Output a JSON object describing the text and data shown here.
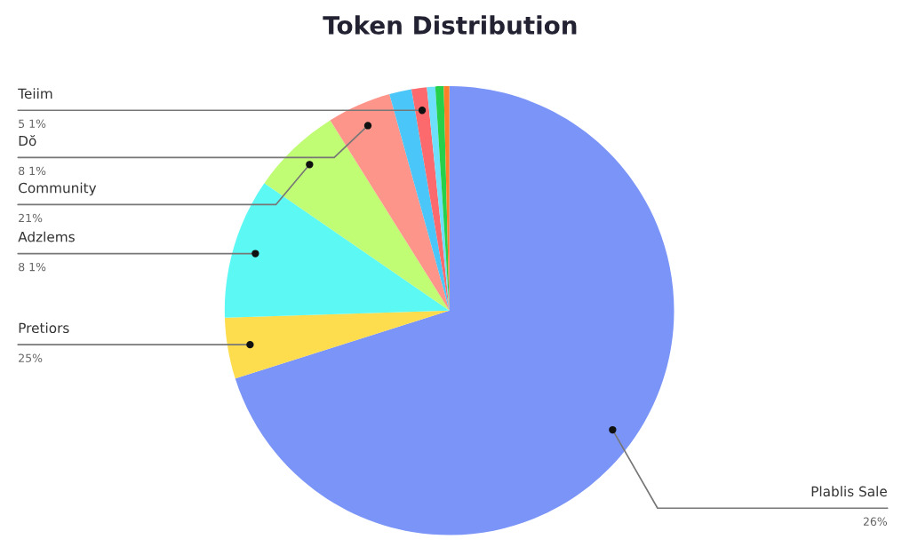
{
  "chart_data": {
    "type": "pie",
    "title": "Token Distribution",
    "categories": [
      "Plablis Sale\n26%",
      "Pretiors\n25%",
      "Adzlems\n8 1%",
      "Community\n21%",
      "Dŏ\n8 1%",
      null,
      "Teiim\n5 1%",
      null,
      null,
      null
    ],
    "values": [
      70.1,
      4.4,
      10.1,
      6.5,
      4.6,
      1.6,
      1.1,
      0.6,
      0.6,
      0.4
    ],
    "colors": [
      "#7b94f8",
      "#fddc4e",
      "#5cf8f4",
      "#c0fc74",
      "#fd958a",
      "#4ac6f8",
      "#fc6a6e",
      "#6ee0fc",
      "#27d04a",
      "#fd7f2a"
    ],
    "legend": false
  }
}
